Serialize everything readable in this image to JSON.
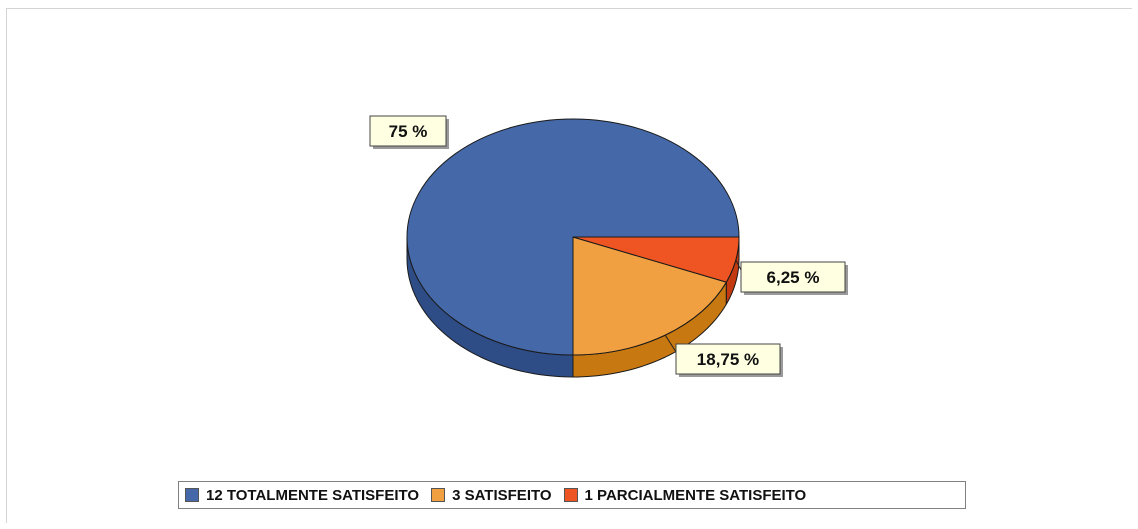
{
  "chart_data": {
    "type": "pie",
    "style": "3d",
    "title": "",
    "categories": [
      "12 TOTALMENTE SATISFEITO",
      "3 SATISFEITO",
      "1 PARCIALMENTE SATISFEITO"
    ],
    "values": [
      75,
      18.75,
      6.25
    ],
    "data_labels": [
      "75 %",
      "18,75 %",
      "6,25 %"
    ],
    "colors": [
      "#4568A8",
      "#F0A040",
      "#EE5522"
    ],
    "side_colors": [
      "#2E4C86",
      "#C87810",
      "#C43A10"
    ],
    "legend_position": "bottom"
  }
}
